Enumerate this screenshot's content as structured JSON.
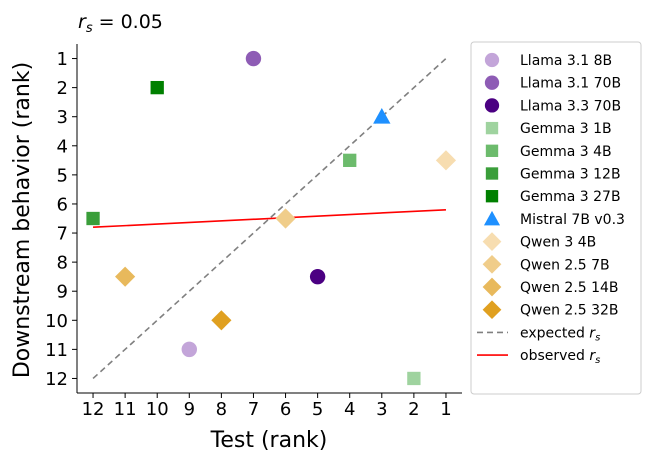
{
  "chart_data": {
    "type": "scatter",
    "title": "r_s = 0.05",
    "title_parts": {
      "symbol": "r",
      "subscript": "s",
      "rest": " = 0.05"
    },
    "xlabel": "Test (rank)",
    "ylabel": "Downstream behavior (rank)",
    "x_reversed": true,
    "y_reversed": true,
    "xlim": [
      12.5,
      0.5
    ],
    "ylim": [
      12.5,
      0.5
    ],
    "xticks": [
      "12",
      "11",
      "10",
      "9",
      "8",
      "7",
      "6",
      "5",
      "4",
      "3",
      "2",
      "1"
    ],
    "yticks": [
      "1",
      "2",
      "3",
      "4",
      "5",
      "6",
      "7",
      "8",
      "9",
      "10",
      "11",
      "12"
    ],
    "grid": false,
    "legend_position": "outside-right",
    "series": [
      {
        "name": "Llama 3.1 8B",
        "marker": "circle",
        "color": "#c3a5d9",
        "points": [
          {
            "x": 9,
            "y": 11
          }
        ]
      },
      {
        "name": "Llama 3.1 70B",
        "marker": "circle",
        "color": "#8e5cb5",
        "points": [
          {
            "x": 7,
            "y": 1
          }
        ]
      },
      {
        "name": "Llama 3.3 70B",
        "marker": "circle",
        "color": "#4b0082",
        "points": [
          {
            "x": 5,
            "y": 8.5
          }
        ]
      },
      {
        "name": "Gemma 3 1B",
        "marker": "square",
        "color": "#9fd39f",
        "points": [
          {
            "x": 2,
            "y": 12
          }
        ]
      },
      {
        "name": "Gemma 3 4B",
        "marker": "square",
        "color": "#6cbb6c",
        "points": [
          {
            "x": 4,
            "y": 4.5
          }
        ]
      },
      {
        "name": "Gemma 3 12B",
        "marker": "square",
        "color": "#3a9e3a",
        "points": [
          {
            "x": 12,
            "y": 6.5
          }
        ]
      },
      {
        "name": "Gemma 3 27B",
        "marker": "square",
        "color": "#008000",
        "points": [
          {
            "x": 10,
            "y": 2
          }
        ]
      },
      {
        "name": "Mistral 7B v0.3",
        "marker": "triangle",
        "color": "#1e90ff",
        "points": [
          {
            "x": 3,
            "y": 3
          }
        ]
      },
      {
        "name": "Qwen 3 4B",
        "marker": "diamond",
        "color": "#f7ddb0",
        "points": [
          {
            "x": 1,
            "y": 4.5
          }
        ]
      },
      {
        "name": "Qwen 2.5 7B",
        "marker": "diamond",
        "color": "#f0cd8a",
        "points": [
          {
            "x": 6,
            "y": 6.5
          }
        ]
      },
      {
        "name": "Qwen 2.5 14B",
        "marker": "diamond",
        "color": "#e8b95c",
        "points": [
          {
            "x": 11,
            "y": 8.5
          }
        ]
      },
      {
        "name": "Qwen 2.5 32B",
        "marker": "diamond",
        "color": "#e0a020",
        "points": [
          {
            "x": 8,
            "y": 10
          }
        ]
      }
    ],
    "lines": [
      {
        "name": "expected",
        "subscript": "s",
        "symbol": "r",
        "style": "dashed",
        "color": "#808080",
        "from": {
          "x": 12,
          "y": 12
        },
        "to": {
          "x": 1,
          "y": 1
        }
      },
      {
        "name": "observed",
        "subscript": "s",
        "symbol": "r",
        "style": "solid",
        "color": "#ff0000",
        "from": {
          "x": 12,
          "y": 6.8
        },
        "to": {
          "x": 1,
          "y": 6.2
        }
      }
    ]
  }
}
